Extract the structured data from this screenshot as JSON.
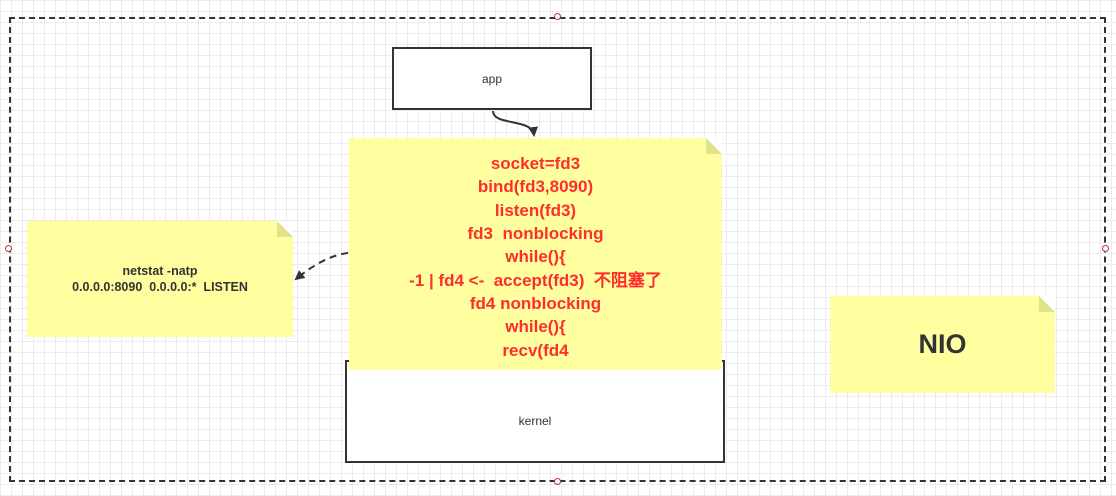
{
  "app_box": {
    "label": "app"
  },
  "kernel_box": {
    "label": "kernel"
  },
  "main_note": {
    "lines": [
      "socket=fd3",
      "bind(fd3,8090)",
      "listen(fd3)",
      "fd3  nonblocking",
      "while(){",
      "-1 | fd4 <-  accept(fd3)  不阻塞了",
      "fd4 nonblocking",
      "while(){",
      "recv(fd4"
    ],
    "text_color": "#ff2d2d",
    "fill_color": "#ffffa0"
  },
  "netstat_note": {
    "lines": [
      "netstat -natp",
      "0.0.0.0:8090  0.0.0.0:*  LISTEN"
    ]
  },
  "nio_note": {
    "label": "NIO"
  }
}
